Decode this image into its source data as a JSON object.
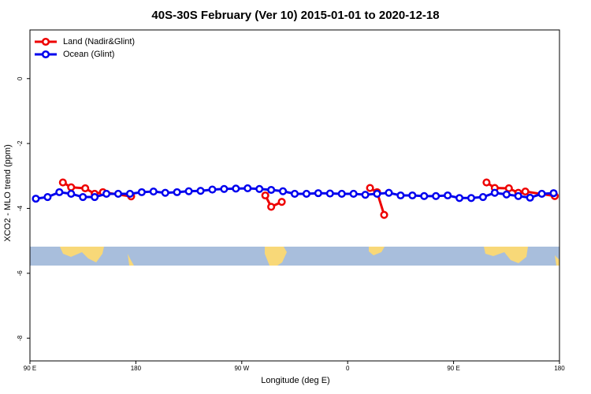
{
  "chart_data": {
    "type": "line",
    "title": "40S-30S February (Ver 10)   2015-01-01 to 2020-12-18",
    "x_label": "Longitude (deg E)",
    "y_label": "XCO2 - MLO trend (ppm)",
    "xlim": [
      90,
      540
    ],
    "ylim": [
      -8.7,
      1.5
    ],
    "xticks": [
      {
        "value": 90,
        "label": "90 E"
      },
      180,
      {
        "value": 270,
        "label": "90 W"
      },
      {
        "value": 360,
        "label": "0"
      },
      {
        "value": 450,
        "label": "90 E"
      },
      {
        "value": 540,
        "label": "180"
      }
    ],
    "yticks": [
      0,
      -2,
      -4,
      -6,
      -8
    ],
    "legend": "top-left",
    "series": [
      {
        "name": "Land (Nadir&Glint)",
        "color": "#ee0000",
        "x": [
          118,
          125,
          137,
          145,
          152,
          176,
          null,
          290,
          295,
          304,
          null,
          379,
          385,
          391,
          null,
          478,
          485,
          497,
          505,
          511,
          536
        ],
        "values": [
          -3.2,
          -3.35,
          -3.38,
          -3.55,
          -3.5,
          -3.63,
          null,
          -3.6,
          -3.95,
          -3.8,
          null,
          -3.37,
          -3.5,
          -4.2,
          null,
          -3.2,
          -3.37,
          -3.38,
          -3.52,
          -3.48,
          -3.62
        ]
      },
      {
        "name": "Ocean (Glint)",
        "color": "#0000ee",
        "x": [
          95,
          105,
          115,
          125,
          135,
          145,
          155,
          165,
          175,
          185,
          195,
          205,
          215,
          225,
          235,
          245,
          255,
          265,
          275,
          285,
          295,
          305,
          315,
          325,
          335,
          345,
          355,
          365,
          375,
          385,
          395,
          405,
          415,
          425,
          435,
          445,
          455,
          465,
          475,
          485,
          495,
          505,
          515,
          525,
          535
        ],
        "values": [
          -3.7,
          -3.65,
          -3.5,
          -3.55,
          -3.65,
          -3.65,
          -3.55,
          -3.55,
          -3.55,
          -3.5,
          -3.48,
          -3.52,
          -3.5,
          -3.47,
          -3.46,
          -3.42,
          -3.4,
          -3.39,
          -3.38,
          -3.4,
          -3.43,
          -3.47,
          -3.55,
          -3.55,
          -3.53,
          -3.54,
          -3.55,
          -3.55,
          -3.58,
          -3.55,
          -3.52,
          -3.6,
          -3.6,
          -3.62,
          -3.62,
          -3.6,
          -3.68,
          -3.68,
          -3.65,
          -3.52,
          -3.57,
          -3.62,
          -3.67,
          -3.55,
          -3.53
        ]
      }
    ]
  }
}
